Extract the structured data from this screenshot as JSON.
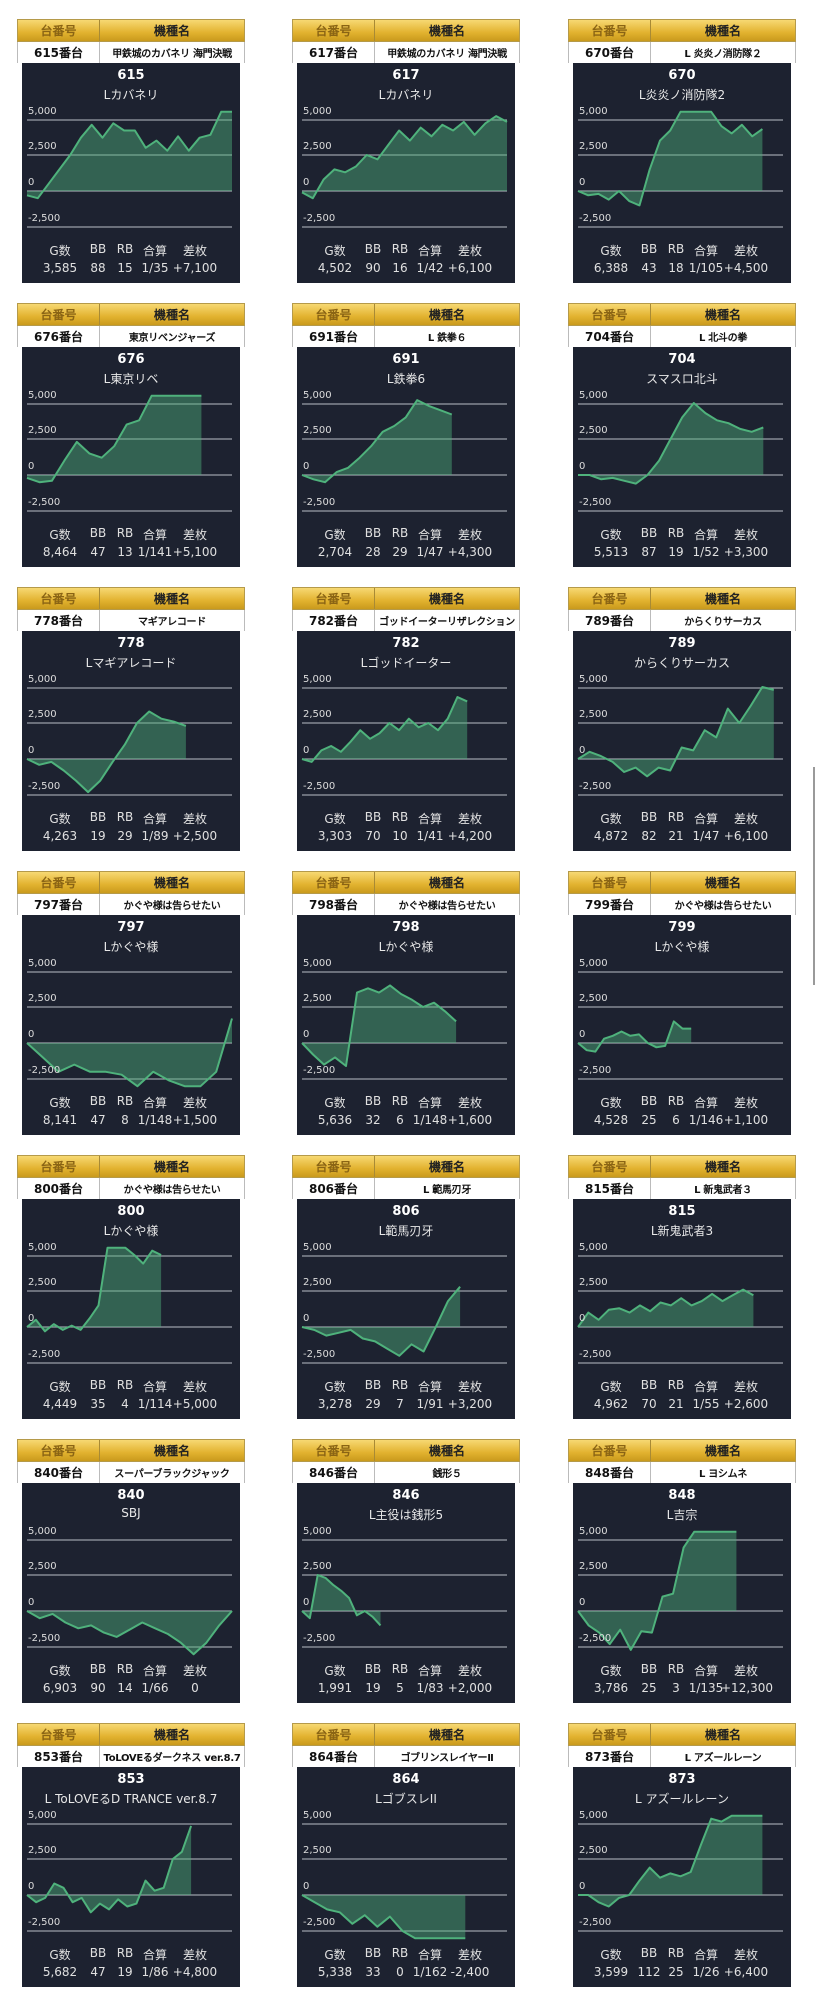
{
  "header_labels": {
    "number": "台番号",
    "model": "機種名"
  },
  "stat_labels": [
    "G数",
    "BB",
    "RB",
    "合算",
    "差枚"
  ],
  "grid_labels": [
    "5,000",
    "2,500",
    "0",
    "-2,500"
  ],
  "colors": {
    "panel": "#1d2230",
    "line": "#4fb27c",
    "fill": "rgba(79,178,124,0.45)",
    "grid": "#9aa0a8"
  },
  "cards": [
    {
      "no": "615番台",
      "model": "甲鉄城のカバネリ 海門決戦",
      "num": "615",
      "short": "Lカバネリ",
      "stats": [
        "3,585",
        "88",
        "15",
        "1/35",
        "+7,100"
      ],
      "x_max": 3585,
      "series": [
        -300,
        -500,
        500,
        1500,
        2500,
        3700,
        4600,
        3700,
        4700,
        4200,
        4200,
        3000,
        3500,
        2800,
        3800,
        2800,
        3700,
        3900,
        5500,
        5500
      ]
    },
    {
      "no": "617番台",
      "model": "甲鉄城のカバネリ 海門決戦",
      "num": "617",
      "short": "Lカバネリ",
      "stats": [
        "4,502",
        "90",
        "16",
        "1/42",
        "+6,100"
      ],
      "x_max": 4502,
      "series": [
        -100,
        -500,
        800,
        1500,
        1300,
        1700,
        2500,
        2200,
        3200,
        4200,
        3500,
        4400,
        3800,
        4600,
        4200,
        4800,
        3900,
        4700,
        5200,
        4800
      ]
    },
    {
      "no": "670番台",
      "model": "L 炎炎ノ消防隊２",
      "num": "670",
      "short": "L炎炎ノ消防隊2",
      "stats": [
        "6,388",
        "43",
        "18",
        "1/105",
        "+4,500"
      ],
      "x_max": 7100,
      "series": [
        0,
        -300,
        -200,
        -600,
        0,
        -700,
        -1000,
        1500,
        3500,
        4200,
        5500,
        5500,
        5500,
        5500,
        4500,
        4000,
        4600,
        3800,
        4300
      ]
    },
    {
      "no": "676番台",
      "model": "東京リベンジャーズ",
      "num": "676",
      "short": "L東京リベ",
      "stats": [
        "8,464",
        "47",
        "13",
        "1/141",
        "+5,100"
      ],
      "x_max": 9950,
      "series": [
        -200,
        -500,
        -400,
        1000,
        2300,
        1500,
        1200,
        2000,
        3500,
        3800,
        5500,
        5500,
        5500,
        5500,
        5500
      ]
    },
    {
      "no": "691番台",
      "model": "L 鉄拳６",
      "num": "691",
      "short": "L鉄拳6",
      "stats": [
        "2,704",
        "28",
        "29",
        "1/47",
        "+4,300"
      ],
      "x_max": 3700,
      "series": [
        0,
        -300,
        -500,
        200,
        500,
        1200,
        2000,
        3000,
        3400,
        4000,
        5200,
        4800,
        4500,
        4200
      ]
    },
    {
      "no": "704番台",
      "model": "L 北斗の拳",
      "num": "704",
      "short": "スマスロ北斗",
      "stats": [
        "5,513",
        "87",
        "19",
        "1/52",
        "+3,300"
      ],
      "x_max": 6100,
      "series": [
        0,
        0,
        -300,
        -200,
        -400,
        -600,
        0,
        1000,
        2500,
        4000,
        5000,
        4300,
        3800,
        3600,
        3200,
        3000,
        3300
      ]
    },
    {
      "no": "778番台",
      "model": "マギアレコード",
      "num": "778",
      "short": "Lマギアレコード",
      "stats": [
        "4,263",
        "19",
        "29",
        "1/89",
        "+2,500"
      ],
      "x_max": 5500,
      "series": [
        0,
        -400,
        -200,
        -800,
        -1500,
        -2300,
        -1500,
        -200,
        1000,
        2500,
        3300,
        2800,
        2600,
        2300
      ]
    },
    {
      "no": "782番台",
      "model": "ゴッドイーターリザレクション",
      "num": "782",
      "short": "Lゴッドイーター",
      "stats": [
        "3,303",
        "70",
        "10",
        "1/41",
        "+4,200"
      ],
      "x_max": 4100,
      "series": [
        0,
        -200,
        600,
        900,
        500,
        1200,
        2000,
        1400,
        1800,
        2500,
        2000,
        2800,
        2200,
        2500,
        2000,
        2800,
        4300,
        4000
      ]
    },
    {
      "no": "789番台",
      "model": "からくりサーカス",
      "num": "789",
      "short": "からくりサーカス",
      "stats": [
        "4,872",
        "82",
        "21",
        "1/47",
        "+6,100"
      ],
      "x_max": 5100,
      "series": [
        0,
        500,
        200,
        -200,
        -900,
        -600,
        -1200,
        -600,
        -800,
        800,
        600,
        2000,
        1500,
        3500,
        2500,
        3700,
        5000,
        4800
      ]
    },
    {
      "no": "797番台",
      "model": "かぐや様は告らせたい",
      "num": "797",
      "short": "Lかぐや様",
      "stats": [
        "8,141",
        "47",
        "8",
        "1/148",
        "+1,500"
      ],
      "x_max": 8141,
      "series": [
        0,
        -1000,
        -2000,
        -1500,
        -2000,
        -2000,
        -2200,
        -3000,
        -2000,
        -2600,
        -3000,
        -3000,
        -2000,
        1700
      ]
    },
    {
      "no": "798番台",
      "model": "かぐや様は告らせたい",
      "num": "798",
      "short": "Lかぐや様",
      "stats": [
        "5,636",
        "32",
        "6",
        "1/148",
        "+1,600"
      ],
      "x_max": 7500,
      "series": [
        0,
        -800,
        -1500,
        -1000,
        -1600,
        3500,
        3800,
        3500,
        4000,
        3400,
        3000,
        2500,
        2800,
        2200,
        1500
      ]
    },
    {
      "no": "799番台",
      "model": "かぐや様は告らせたい",
      "num": "799",
      "short": "Lかぐや様",
      "stats": [
        "4,528",
        "25",
        "6",
        "1/146",
        "+1,100"
      ],
      "x_max": 8200,
      "series": [
        0,
        -500,
        -600,
        300,
        500,
        800,
        500,
        600,
        0,
        -300,
        -200,
        1500,
        1000,
        1000
      ]
    },
    {
      "no": "800番台",
      "model": "かぐや様は告らせたい",
      "num": "800",
      "short": "Lかぐや様",
      "stats": [
        "4,449",
        "35",
        "4",
        "1/114",
        "+5,000"
      ],
      "x_max": 6800,
      "series": [
        0,
        500,
        -300,
        200,
        -200,
        100,
        -200,
        600,
        1500,
        5500,
        5500,
        5500,
        5000,
        4400,
        5300,
        5000
      ]
    },
    {
      "no": "806番台",
      "model": "L 範馬刃牙",
      "num": "806",
      "short": "L範馬刃牙",
      "stats": [
        "3,278",
        "29",
        "7",
        "1/91",
        "+3,200"
      ],
      "x_max": 4250,
      "series": [
        0,
        -200,
        -600,
        -400,
        -200,
        -800,
        -1000,
        -1500,
        -2000,
        -1200,
        -1700,
        0,
        1800,
        2800
      ]
    },
    {
      "no": "815番台",
      "model": "L 新鬼武者３",
      "num": "815",
      "short": "L新鬼武者3",
      "stats": [
        "4,962",
        "70",
        "21",
        "1/55",
        "+2,600"
      ],
      "x_max": 5800,
      "series": [
        0,
        1000,
        500,
        1200,
        1300,
        1000,
        1500,
        1100,
        1700,
        1500,
        2000,
        1500,
        1800,
        2300,
        1800,
        2200,
        2600,
        2200
      ]
    },
    {
      "no": "840番台",
      "model": "スーパーブラックジャック",
      "num": "840",
      "short": "SBJ",
      "stats": [
        "6,903",
        "90",
        "14",
        "1/66",
        "0"
      ],
      "x_max": 6903,
      "series": [
        0,
        -500,
        -200,
        -800,
        -1200,
        -1000,
        -1500,
        -1800,
        -1300,
        -800,
        -1200,
        -1600,
        -2200,
        -3000,
        -2200,
        -1000,
        0
      ]
    },
    {
      "no": "846番台",
      "model": "銭形５",
      "num": "846",
      "short": "L主役は銭形5",
      "stats": [
        "1,991",
        "19",
        "5",
        "1/83",
        "+2,000"
      ],
      "x_max": 5200,
      "series": [
        0,
        -500,
        2500,
        2300,
        1800,
        1400,
        900,
        -300,
        0,
        -400,
        -1000
      ]
    },
    {
      "no": "848番台",
      "model": "L ヨシムネ",
      "num": "848",
      "short": "L吉宗",
      "stats": [
        "3,786",
        "25",
        "3",
        "1/135",
        "+12,300"
      ],
      "x_max": 4900,
      "series": [
        0,
        -1000,
        -1500,
        -2300,
        -1300,
        -2700,
        -1400,
        -1500,
        1000,
        1200,
        4400,
        5500,
        5500,
        5500,
        5500,
        5500
      ]
    },
    {
      "no": "853番台",
      "model": "ToLOVEるダークネス ver.8.7",
      "num": "853",
      "short": "L ToLOVEるD TRANCE ver.8.7",
      "stats": [
        "5,682",
        "47",
        "19",
        "1/86",
        "+4,800"
      ],
      "x_max": 7100,
      "series": [
        0,
        -500,
        -200,
        800,
        500,
        -500,
        -200,
        -1200,
        -600,
        -1000,
        -300,
        -800,
        -600,
        1000,
        300,
        500,
        2500,
        3000,
        4800
      ]
    },
    {
      "no": "864番台",
      "model": "ゴブリンスレイヤーⅡ",
      "num": "864",
      "short": "LゴブスレII",
      "stats": [
        "5,338",
        "33",
        "0",
        "1/162",
        "-2,400"
      ],
      "x_max": 6700,
      "series": [
        0,
        -500,
        -1000,
        -1200,
        -2000,
        -1400,
        -2200,
        -1500,
        -2500,
        -3000,
        -3000,
        -3000,
        -3000,
        -3000
      ]
    },
    {
      "no": "873番台",
      "model": "L アズールレーン",
      "num": "873",
      "short": "L アズールレーン",
      "stats": [
        "3,599",
        "112",
        "25",
        "1/26",
        "+6,400"
      ],
      "x_max": 4000,
      "series": [
        0,
        0,
        -500,
        -800,
        -200,
        0,
        1000,
        1900,
        1200,
        1500,
        1300,
        1600,
        3500,
        5300,
        5100,
        5500,
        5500,
        5500,
        5500
      ]
    }
  ]
}
